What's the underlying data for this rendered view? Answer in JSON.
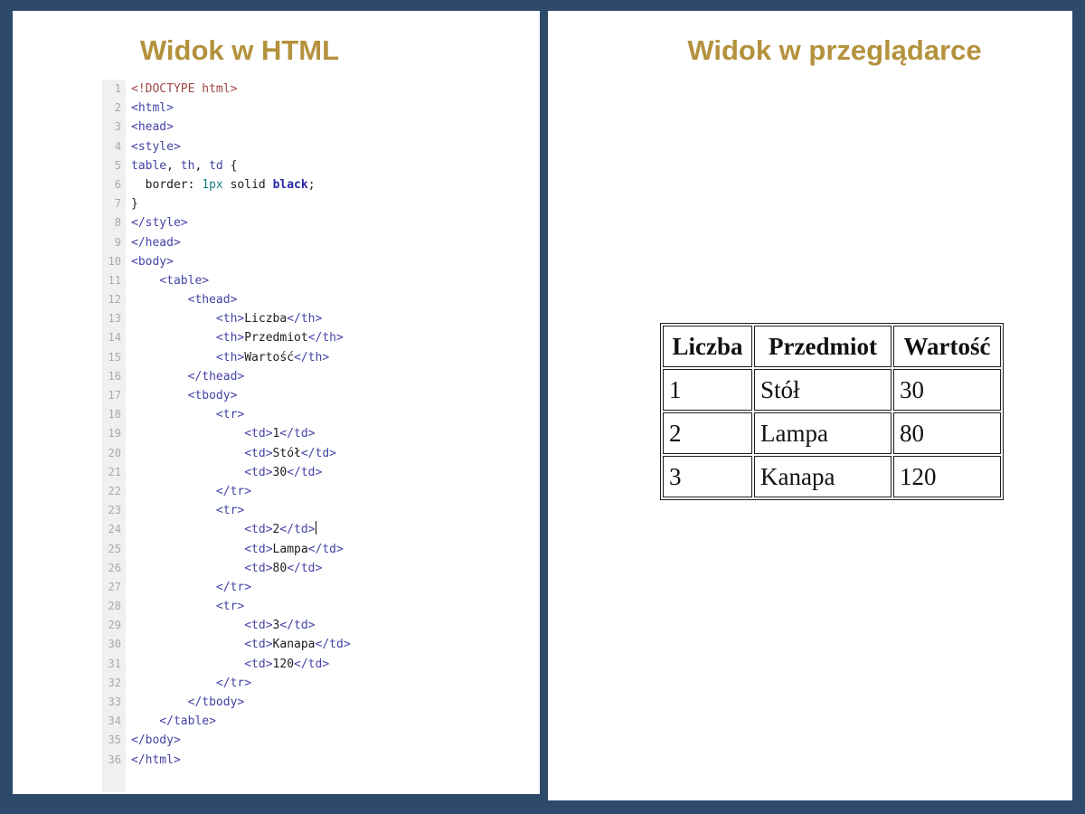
{
  "theme": {
    "frame_bg": "#2e4a6b",
    "panel_bg": "#ffffff",
    "title_gold": "#b4923d",
    "gutter_bg": "#f0f0f0",
    "line_number": "#a9a9a9",
    "tok_tag": "#4343a6",
    "tok_meta": "#a04646",
    "tok_number": "#1a8080",
    "tok_atom": "#2828a8",
    "tok_plain": "#1d1d1d",
    "table_border": "#1e1e1e"
  },
  "left_panel": {
    "title": "Widok w HTML",
    "editor": {
      "caret_after_line": 24,
      "lines": [
        {
          "n": 1,
          "segs": [
            {
              "c": "meta",
              "t": "<!DOCTYPE html>"
            }
          ]
        },
        {
          "n": 2,
          "segs": [
            {
              "c": "tag",
              "t": "<html>"
            }
          ]
        },
        {
          "n": 3,
          "segs": [
            {
              "c": "tag",
              "t": "<head>"
            }
          ]
        },
        {
          "n": 4,
          "segs": [
            {
              "c": "tag",
              "t": "<style>"
            }
          ]
        },
        {
          "n": 5,
          "segs": [
            {
              "c": "tag",
              "t": "table"
            },
            {
              "c": "plain",
              "t": ", "
            },
            {
              "c": "tag",
              "t": "th"
            },
            {
              "c": "plain",
              "t": ", "
            },
            {
              "c": "tag",
              "t": "td"
            },
            {
              "c": "plain",
              "t": " {"
            }
          ]
        },
        {
          "n": 6,
          "segs": [
            {
              "c": "plain",
              "t": "  border: "
            },
            {
              "c": "num",
              "t": "1px"
            },
            {
              "c": "plain",
              "t": " solid "
            },
            {
              "c": "atom",
              "t": "black"
            },
            {
              "c": "plain",
              "t": ";"
            }
          ]
        },
        {
          "n": 7,
          "segs": [
            {
              "c": "plain",
              "t": "}"
            }
          ]
        },
        {
          "n": 8,
          "segs": [
            {
              "c": "tag",
              "t": "</style>"
            }
          ]
        },
        {
          "n": 9,
          "segs": [
            {
              "c": "tag",
              "t": "</head>"
            }
          ]
        },
        {
          "n": 10,
          "segs": [
            {
              "c": "tag",
              "t": "<body>"
            }
          ]
        },
        {
          "n": 11,
          "segs": [
            {
              "c": "tag",
              "t": "    <table>"
            }
          ]
        },
        {
          "n": 12,
          "segs": [
            {
              "c": "tag",
              "t": "        <thead>"
            }
          ]
        },
        {
          "n": 13,
          "segs": [
            {
              "c": "tag",
              "t": "            <th>"
            },
            {
              "c": "plain",
              "t": "Liczba"
            },
            {
              "c": "tag",
              "t": "</th>"
            }
          ]
        },
        {
          "n": 14,
          "segs": [
            {
              "c": "tag",
              "t": "            <th>"
            },
            {
              "c": "plain",
              "t": "Przedmiot"
            },
            {
              "c": "tag",
              "t": "</th>"
            }
          ]
        },
        {
          "n": 15,
          "segs": [
            {
              "c": "tag",
              "t": "            <th>"
            },
            {
              "c": "plain",
              "t": "Wartość"
            },
            {
              "c": "tag",
              "t": "</th>"
            }
          ]
        },
        {
          "n": 16,
          "segs": [
            {
              "c": "tag",
              "t": "        </thead>"
            }
          ]
        },
        {
          "n": 17,
          "segs": [
            {
              "c": "tag",
              "t": "        <tbody>"
            }
          ]
        },
        {
          "n": 18,
          "segs": [
            {
              "c": "tag",
              "t": "            <tr>"
            }
          ]
        },
        {
          "n": 19,
          "segs": [
            {
              "c": "tag",
              "t": "                <td>"
            },
            {
              "c": "plain",
              "t": "1"
            },
            {
              "c": "tag",
              "t": "</td>"
            }
          ]
        },
        {
          "n": 20,
          "segs": [
            {
              "c": "tag",
              "t": "                <td>"
            },
            {
              "c": "plain",
              "t": "Stół"
            },
            {
              "c": "tag",
              "t": "</td>"
            }
          ]
        },
        {
          "n": 21,
          "segs": [
            {
              "c": "tag",
              "t": "                <td>"
            },
            {
              "c": "plain",
              "t": "30"
            },
            {
              "c": "tag",
              "t": "</td>"
            }
          ]
        },
        {
          "n": 22,
          "segs": [
            {
              "c": "tag",
              "t": "            </tr>"
            }
          ]
        },
        {
          "n": 23,
          "segs": [
            {
              "c": "tag",
              "t": "            <tr>"
            }
          ]
        },
        {
          "n": 24,
          "segs": [
            {
              "c": "tag",
              "t": "                <td>"
            },
            {
              "c": "plain",
              "t": "2"
            },
            {
              "c": "tag",
              "t": "</td>"
            }
          ]
        },
        {
          "n": 25,
          "segs": [
            {
              "c": "tag",
              "t": "                <td>"
            },
            {
              "c": "plain",
              "t": "Lampa"
            },
            {
              "c": "tag",
              "t": "</td>"
            }
          ]
        },
        {
          "n": 26,
          "segs": [
            {
              "c": "tag",
              "t": "                <td>"
            },
            {
              "c": "plain",
              "t": "80"
            },
            {
              "c": "tag",
              "t": "</td>"
            }
          ]
        },
        {
          "n": 27,
          "segs": [
            {
              "c": "tag",
              "t": "            </tr>"
            }
          ]
        },
        {
          "n": 28,
          "segs": [
            {
              "c": "tag",
              "t": "            <tr>"
            }
          ]
        },
        {
          "n": 29,
          "segs": [
            {
              "c": "tag",
              "t": "                <td>"
            },
            {
              "c": "plain",
              "t": "3"
            },
            {
              "c": "tag",
              "t": "</td>"
            }
          ]
        },
        {
          "n": 30,
          "segs": [
            {
              "c": "tag",
              "t": "                <td>"
            },
            {
              "c": "plain",
              "t": "Kanapa"
            },
            {
              "c": "tag",
              "t": "</td>"
            }
          ]
        },
        {
          "n": 31,
          "segs": [
            {
              "c": "tag",
              "t": "                <td>"
            },
            {
              "c": "plain",
              "t": "120"
            },
            {
              "c": "tag",
              "t": "</td>"
            }
          ]
        },
        {
          "n": 32,
          "segs": [
            {
              "c": "tag",
              "t": "            </tr>"
            }
          ]
        },
        {
          "n": 33,
          "segs": [
            {
              "c": "tag",
              "t": "        </tbody>"
            }
          ]
        },
        {
          "n": 34,
          "segs": [
            {
              "c": "tag",
              "t": "    </table>"
            }
          ]
        },
        {
          "n": 35,
          "segs": [
            {
              "c": "tag",
              "t": "</body>"
            }
          ]
        },
        {
          "n": 36,
          "segs": [
            {
              "c": "tag",
              "t": "</html>"
            }
          ]
        }
      ]
    }
  },
  "right_panel": {
    "title": "Widok w przeglądarce",
    "table": {
      "headers": [
        "Liczba",
        "Przedmiot",
        "Wartość"
      ],
      "rows": [
        [
          "1",
          "Stół",
          "30"
        ],
        [
          "2",
          "Lampa",
          "80"
        ],
        [
          "3",
          "Kanapa",
          "120"
        ]
      ]
    }
  }
}
